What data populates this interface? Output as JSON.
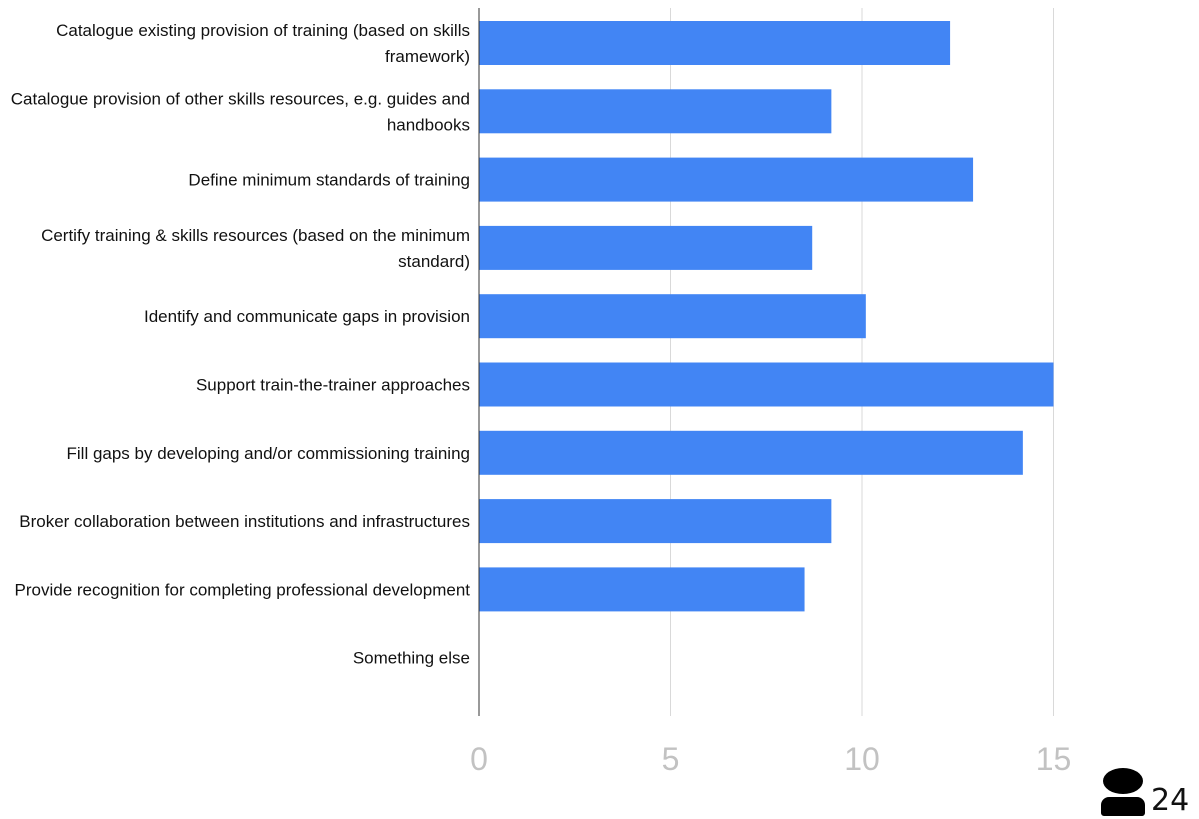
{
  "chart_data": {
    "type": "bar",
    "orientation": "horizontal",
    "categories": [
      [
        "Catalogue existing provision of training (based on skills",
        "framework)"
      ],
      [
        "Catalogue provision of other skills resources, e.g. guides and",
        "handbooks"
      ],
      [
        "Define minimum standards of training"
      ],
      [
        "Certify training & skills resources (based on the minimum",
        "standard)"
      ],
      [
        "Identify and communicate gaps in provision"
      ],
      [
        "Support train-the-trainer approaches"
      ],
      [
        "Fill gaps by developing and/or commissioning training"
      ],
      [
        "Broker collaboration between institutions and infrastructures"
      ],
      [
        "Provide recognition for completing professional development"
      ],
      [
        "Something else"
      ]
    ],
    "values": [
      12.3,
      9.2,
      12.9,
      8.7,
      10.1,
      15.0,
      14.2,
      9.2,
      8.5,
      0
    ],
    "xlim": [
      0,
      15
    ],
    "xticks": [
      "0",
      "5",
      "10",
      "15"
    ],
    "grid": true,
    "bar_color": "#4285f4"
  },
  "respondents": {
    "icon": "person-icon",
    "count": "24"
  }
}
